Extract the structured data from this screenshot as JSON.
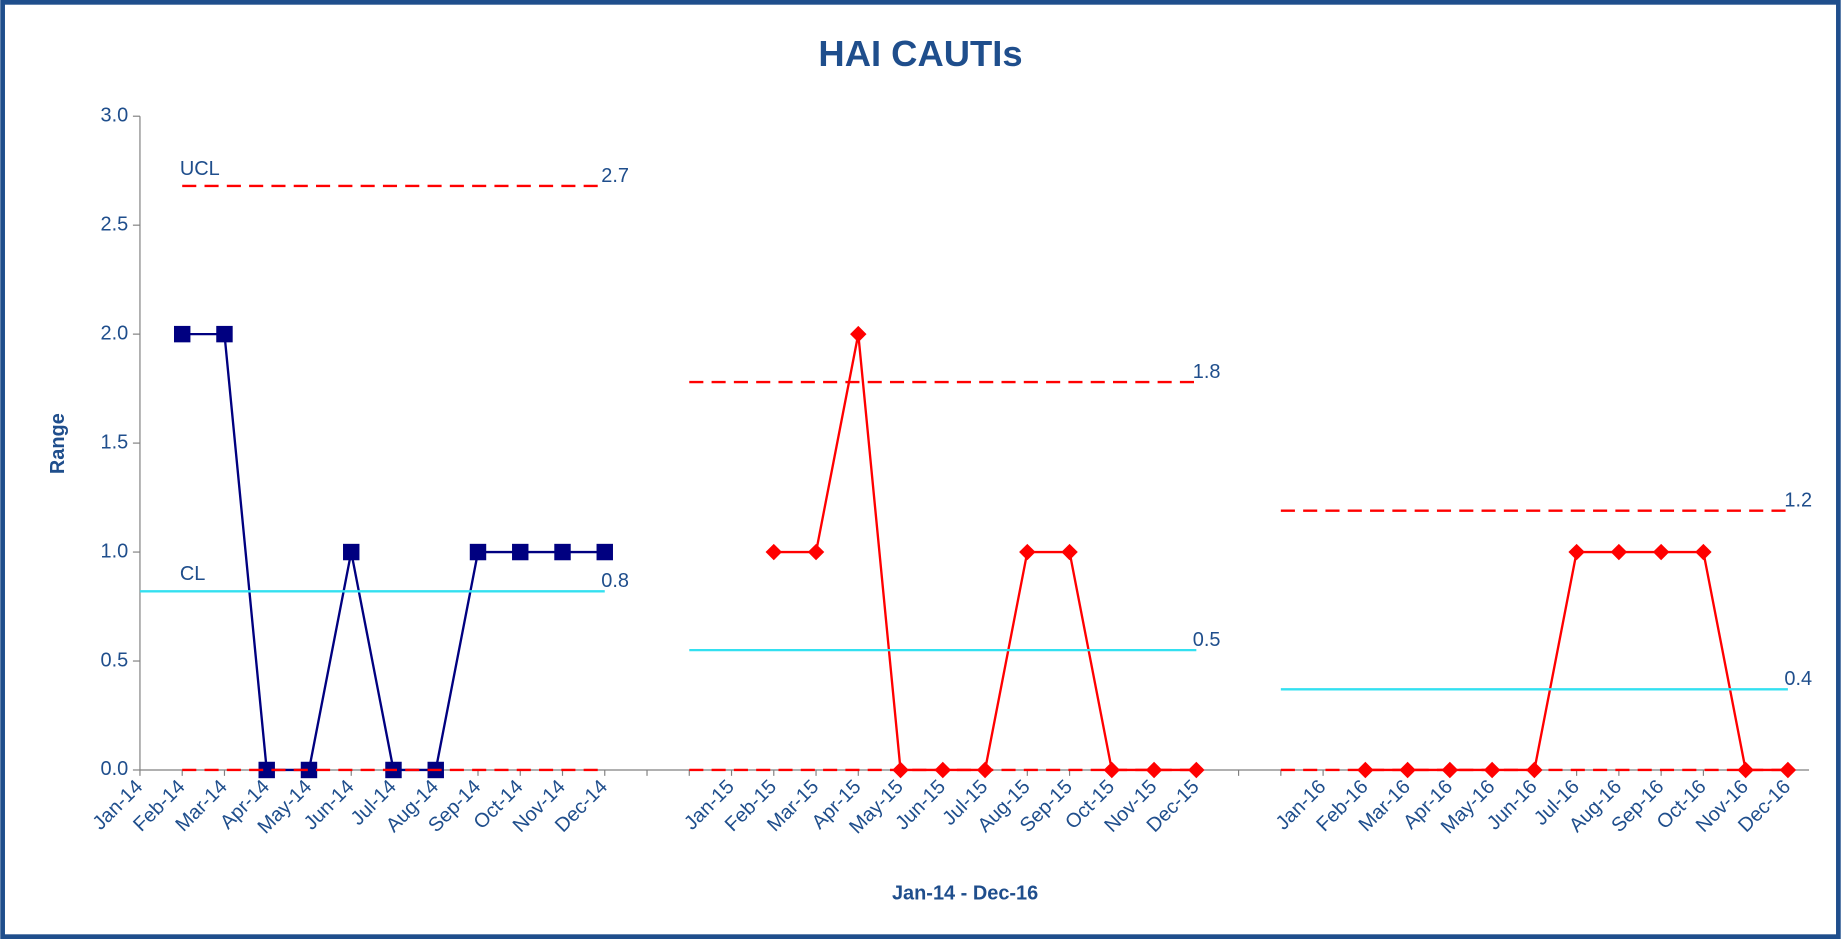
{
  "chart_data": {
    "type": "line",
    "title": "HAI CAUTIs",
    "xlabel": "Jan-14 - Dec-16",
    "ylabel": "Range",
    "categories": [
      "Jan-14",
      "Feb-14",
      "Mar-14",
      "Apr-14",
      "May-14",
      "Jun-14",
      "Jul-14",
      "Aug-14",
      "Sep-14",
      "Oct-14",
      "Nov-14",
      "Dec-14",
      null,
      null,
      "Jan-15",
      "Feb-15",
      "Mar-15",
      "Apr-15",
      "May-15",
      "Jun-15",
      "Jul-15",
      "Aug-15",
      "Sep-15",
      "Oct-15",
      "Nov-15",
      "Dec-15",
      null,
      null,
      "Jan-16",
      "Feb-16",
      "Mar-16",
      "Apr-16",
      "May-16",
      "Jun-16",
      "Jul-16",
      "Aug-16",
      "Sep-16",
      "Oct-16",
      "Nov-16",
      "Dec-16"
    ],
    "ylim": [
      0,
      3
    ],
    "yticks": [
      {
        "value": 0,
        "label": "0.0"
      },
      0.5,
      {
        "value": 1,
        "label": "1.0"
      },
      1.5,
      {
        "value": 2,
        "label": "2.0"
      },
      2.5,
      {
        "value": 3,
        "label": "3.0"
      }
    ],
    "grid": false,
    "series": [
      {
        "color": "#000080",
        "marker": "square",
        "line_style": "solid",
        "values": [
          null,
          2,
          2,
          0,
          0,
          1,
          0,
          0,
          1,
          1,
          1,
          1,
          null,
          null,
          null,
          null,
          null,
          null,
          null,
          null,
          null,
          null,
          null,
          null,
          null,
          null,
          null,
          null,
          null,
          null,
          null,
          null,
          null,
          null,
          null,
          null,
          null,
          null,
          null,
          null
        ]
      },
      {
        "color": "#ff0000",
        "marker": "diamond",
        "line_style": "solid",
        "values": [
          null,
          null,
          null,
          null,
          null,
          null,
          null,
          null,
          null,
          null,
          null,
          null,
          null,
          null,
          null,
          1,
          1,
          2,
          0,
          0,
          0,
          1,
          1,
          0,
          0,
          0,
          null,
          null,
          null,
          0,
          0,
          0,
          0,
          0,
          1,
          1,
          1,
          1,
          0,
          0
        ]
      },
      {
        "name": "UCL",
        "color": "#ff0000",
        "marker": "none",
        "line_style": "dashed",
        "values": [
          null,
          2.68,
          2.68,
          2.68,
          2.68,
          2.68,
          2.68,
          2.68,
          2.68,
          2.68,
          2.68,
          2.68,
          null,
          1.78,
          1.78,
          1.78,
          1.78,
          1.78,
          1.78,
          1.78,
          1.78,
          1.78,
          1.78,
          1.78,
          1.78,
          1.78,
          null,
          1.19,
          1.19,
          1.19,
          1.19,
          1.19,
          1.19,
          1.19,
          1.19,
          1.19,
          1.19,
          1.19,
          1.19,
          1.19
        ],
        "value_labels": [
          null,
          null,
          null,
          null,
          null,
          null,
          null,
          null,
          null,
          null,
          null,
          "2.7",
          null,
          null,
          null,
          null,
          null,
          null,
          null,
          null,
          null,
          null,
          null,
          null,
          null,
          "1.8",
          null,
          null,
          null,
          null,
          null,
          null,
          null,
          null,
          null,
          null,
          null,
          null,
          null,
          "1.2"
        ]
      },
      {
        "name": "CL",
        "color": "#33e0f0",
        "marker": "none",
        "line_style": "solid",
        "values": [
          0.82,
          0.82,
          0.82,
          0.82,
          0.82,
          0.82,
          0.82,
          0.82,
          0.82,
          0.82,
          0.82,
          0.82,
          null,
          0.55,
          0.55,
          0.55,
          0.55,
          0.55,
          0.55,
          0.55,
          0.55,
          0.55,
          0.55,
          0.55,
          0.55,
          0.55,
          null,
          0.37,
          0.37,
          0.37,
          0.37,
          0.37,
          0.37,
          0.37,
          0.37,
          0.37,
          0.37,
          0.37,
          0.37,
          0.37
        ],
        "value_labels": [
          null,
          null,
          null,
          null,
          null,
          null,
          null,
          null,
          null,
          null,
          null,
          "0.8",
          null,
          null,
          null,
          null,
          null,
          null,
          null,
          null,
          null,
          null,
          null,
          null,
          null,
          "0.5",
          null,
          null,
          null,
          null,
          null,
          null,
          null,
          null,
          null,
          null,
          null,
          null,
          null,
          "0.4"
        ]
      },
      {
        "color": "#ff0000",
        "marker": "none",
        "line_style": "dashed",
        "values": [
          null,
          0,
          0,
          0,
          0,
          0,
          0,
          0,
          0,
          0,
          0,
          0,
          null,
          0,
          0,
          0,
          0,
          0,
          0,
          0,
          0,
          0,
          0,
          0,
          0,
          0,
          null,
          0,
          0,
          0,
          0,
          0,
          0,
          0,
          0,
          0,
          0,
          0,
          0,
          0
        ]
      }
    ]
  }
}
